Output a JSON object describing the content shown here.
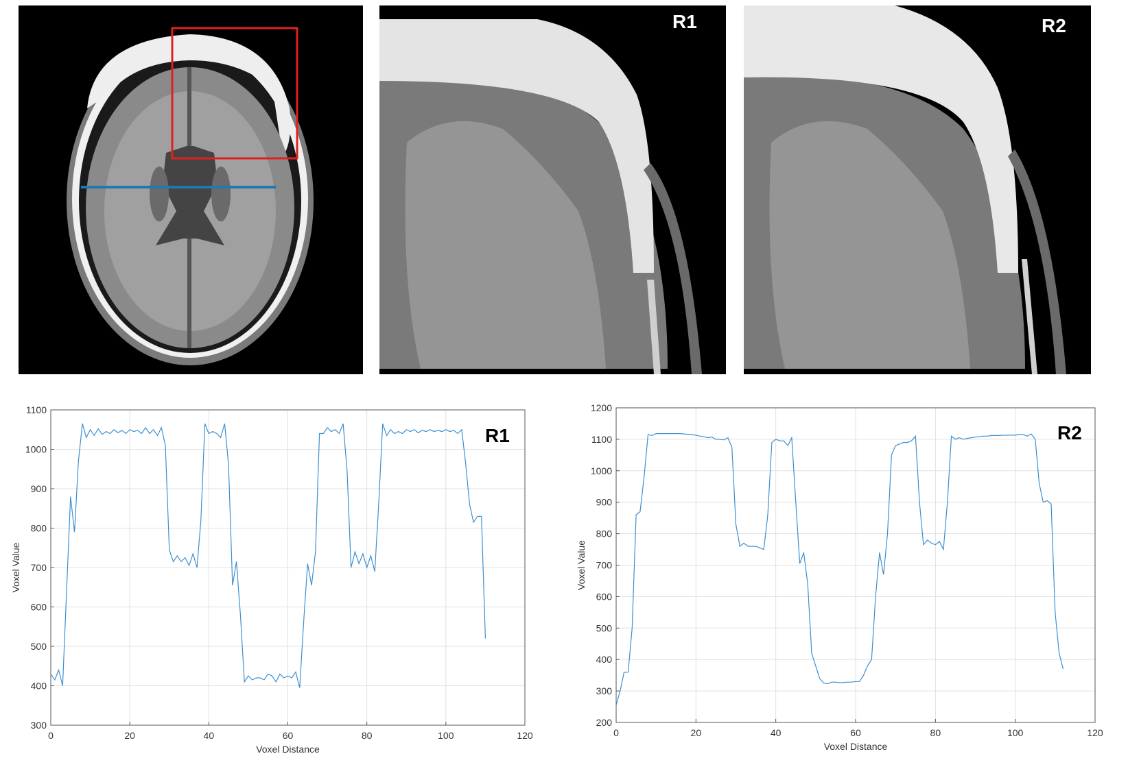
{
  "panels": {
    "r1_label": "R1",
    "r2_label": "R2"
  },
  "colors": {
    "roi_box": "#e02020",
    "profile_line": "#1f77b4",
    "series": "#3c8fd0",
    "grid": "#e0e0e0"
  },
  "chart_data": [
    {
      "type": "line",
      "corner_label": "R1",
      "xlabel": "Voxel Distance",
      "ylabel": "Voxel Value",
      "xlim": [
        0,
        120
      ],
      "ylim": [
        300,
        1100
      ],
      "xticks": [
        0,
        20,
        40,
        60,
        80,
        100,
        120
      ],
      "yticks": [
        300,
        400,
        500,
        600,
        700,
        800,
        900,
        1000,
        1100
      ],
      "grid": true,
      "series": [
        {
          "x": [
            0,
            1,
            2,
            3,
            4,
            5,
            6,
            7,
            8,
            9,
            10,
            11,
            12,
            13,
            14,
            15,
            16,
            17,
            18,
            19,
            20,
            21,
            22,
            23,
            24,
            25,
            26,
            27,
            28,
            29,
            30,
            31,
            32,
            33,
            34,
            35,
            36,
            37,
            38,
            39,
            40,
            41,
            42,
            43,
            44,
            45,
            46,
            47,
            48,
            49,
            50,
            51,
            52,
            53,
            54,
            55,
            56,
            57,
            58,
            59,
            60,
            61,
            62,
            63,
            64,
            65,
            66,
            67,
            68,
            69,
            70,
            71,
            72,
            73,
            74,
            75,
            76,
            77,
            78,
            79,
            80,
            81,
            82,
            83,
            84,
            85,
            86,
            87,
            88,
            89,
            90,
            91,
            92,
            93,
            94,
            95,
            96,
            97,
            98,
            99,
            100,
            101,
            102,
            103,
            104,
            105,
            106,
            107,
            108,
            109,
            110
          ],
          "y": [
            430,
            415,
            440,
            400,
            640,
            880,
            790,
            970,
            1065,
            1030,
            1050,
            1035,
            1052,
            1038,
            1045,
            1040,
            1050,
            1042,
            1048,
            1040,
            1050,
            1045,
            1048,
            1040,
            1055,
            1040,
            1050,
            1035,
            1055,
            1010,
            745,
            715,
            730,
            715,
            725,
            705,
            735,
            700,
            820,
            1065,
            1040,
            1045,
            1040,
            1030,
            1065,
            960,
            655,
            715,
            580,
            410,
            425,
            415,
            420,
            420,
            415,
            430,
            425,
            410,
            430,
            420,
            425,
            420,
            435,
            395,
            560,
            710,
            655,
            740,
            1040,
            1040,
            1055,
            1045,
            1050,
            1040,
            1065,
            945,
            700,
            740,
            710,
            735,
            700,
            730,
            690,
            860,
            1065,
            1035,
            1050,
            1040,
            1045,
            1040,
            1050,
            1045,
            1050,
            1042,
            1048,
            1045,
            1050,
            1045,
            1048,
            1045,
            1050,
            1045,
            1048,
            1040,
            1050,
            965,
            860,
            815,
            830,
            830,
            520
          ]
        }
      ]
    },
    {
      "type": "line",
      "corner_label": "R2",
      "xlabel": "Voxel Distance",
      "ylabel": "Voxel Value",
      "xlim": [
        0,
        120
      ],
      "ylim": [
        200,
        1200
      ],
      "xticks": [
        0,
        20,
        40,
        60,
        80,
        100,
        120
      ],
      "yticks": [
        200,
        300,
        400,
        500,
        600,
        700,
        800,
        900,
        1000,
        1100,
        1200
      ],
      "grid": true,
      "series": [
        {
          "x": [
            0,
            1,
            2,
            3,
            4,
            5,
            6,
            7,
            8,
            9,
            10,
            11,
            12,
            13,
            14,
            15,
            16,
            17,
            18,
            19,
            20,
            21,
            22,
            23,
            24,
            25,
            26,
            27,
            28,
            29,
            30,
            31,
            32,
            33,
            34,
            35,
            36,
            37,
            38,
            39,
            40,
            41,
            42,
            43,
            44,
            45,
            46,
            47,
            48,
            49,
            50,
            51,
            52,
            53,
            54,
            55,
            56,
            57,
            58,
            59,
            60,
            61,
            62,
            63,
            64,
            65,
            66,
            67,
            68,
            69,
            70,
            71,
            72,
            73,
            74,
            75,
            76,
            77,
            78,
            79,
            80,
            81,
            82,
            83,
            84,
            85,
            86,
            87,
            88,
            89,
            90,
            91,
            92,
            93,
            94,
            95,
            96,
            97,
            98,
            99,
            100,
            101,
            102,
            103,
            104,
            105,
            106,
            107,
            108,
            109,
            110,
            111,
            112
          ],
          "y": [
            255,
            300,
            360,
            360,
            500,
            860,
            870,
            980,
            1115,
            1112,
            1118,
            1118,
            1118,
            1118,
            1118,
            1118,
            1118,
            1117,
            1116,
            1115,
            1113,
            1110,
            1108,
            1105,
            1107,
            1100,
            1100,
            1098,
            1105,
            1075,
            830,
            760,
            770,
            760,
            760,
            760,
            755,
            750,
            860,
            1090,
            1100,
            1095,
            1095,
            1080,
            1105,
            900,
            705,
            740,
            640,
            420,
            380,
            340,
            325,
            323,
            328,
            328,
            326,
            327,
            328,
            328,
            330,
            330,
            350,
            380,
            400,
            600,
            740,
            670,
            800,
            1050,
            1080,
            1085,
            1090,
            1090,
            1095,
            1110,
            900,
            765,
            780,
            770,
            765,
            775,
            750,
            900,
            1110,
            1100,
            1105,
            1100,
            1103,
            1105,
            1107,
            1108,
            1110,
            1110,
            1112,
            1112,
            1112,
            1113,
            1113,
            1113,
            1113,
            1115,
            1115,
            1110,
            1117,
            1100,
            960,
            900,
            905,
            895,
            550,
            420,
            370
          ]
        }
      ]
    }
  ]
}
